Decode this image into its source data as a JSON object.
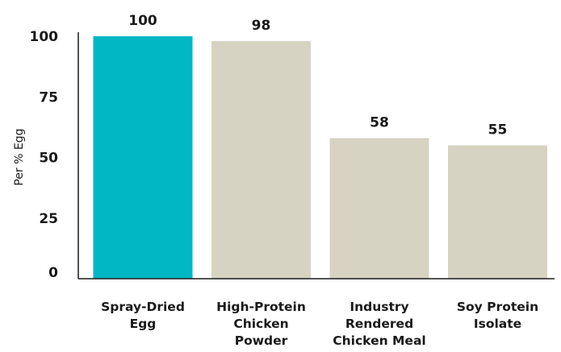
{
  "chart_data": {
    "type": "bar",
    "title": "",
    "xlabel": "",
    "ylabel": "Per % Egg",
    "ylim": [
      0,
      100
    ],
    "yticks": [
      0,
      25,
      50,
      75,
      100
    ],
    "categories": [
      [
        "Spray-Dried",
        "Egg"
      ],
      [
        "High-Protein",
        "Chicken",
        "Powder"
      ],
      [
        "Industry",
        "Rendered",
        "Chicken Meal"
      ],
      [
        "Soy Protein",
        "Isolate"
      ]
    ],
    "values": [
      100,
      98,
      58,
      55
    ],
    "data_labels": [
      "100",
      "98",
      "58",
      "55"
    ],
    "colors": [
      "#00b7c3",
      "#d7d3c3",
      "#d7d3c3",
      "#d7d3c3"
    ],
    "axis_color": "#1a1a1a",
    "grid": false,
    "legend": "none"
  }
}
